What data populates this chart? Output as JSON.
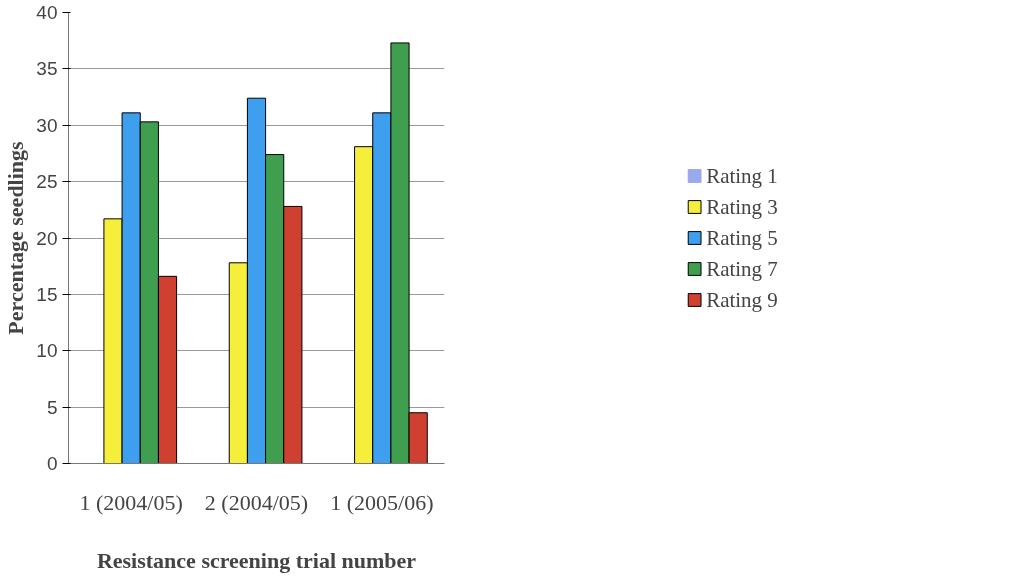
{
  "chart_data": {
    "type": "bar",
    "xlabel": "Resistance screening trial number",
    "ylabel": "Percentage seedlings",
    "categories": [
      "1 (2004/05)",
      "2 (2004/05)",
      "1 (2005/06)"
    ],
    "series": [
      {
        "name": "Rating 1",
        "color": "#9aa8f0",
        "values": [
          0,
          0,
          0
        ]
      },
      {
        "name": "Rating 3",
        "color": "#f5ef3c",
        "values": [
          21.7,
          17.8,
          28.1
        ]
      },
      {
        "name": "Rating 5",
        "color": "#3f9fef",
        "values": [
          31.1,
          32.4,
          31.1
        ]
      },
      {
        "name": "Rating 7",
        "color": "#3f9f4f",
        "values": [
          30.3,
          27.4,
          37.3
        ]
      },
      {
        "name": "Rating 9",
        "color": "#d04030",
        "values": [
          16.6,
          22.8,
          4.5
        ]
      }
    ],
    "ylim": [
      0,
      40
    ],
    "yticks": [
      0,
      5,
      10,
      15,
      20,
      25,
      30,
      35,
      40
    ],
    "grid": "y",
    "legend": "right"
  }
}
